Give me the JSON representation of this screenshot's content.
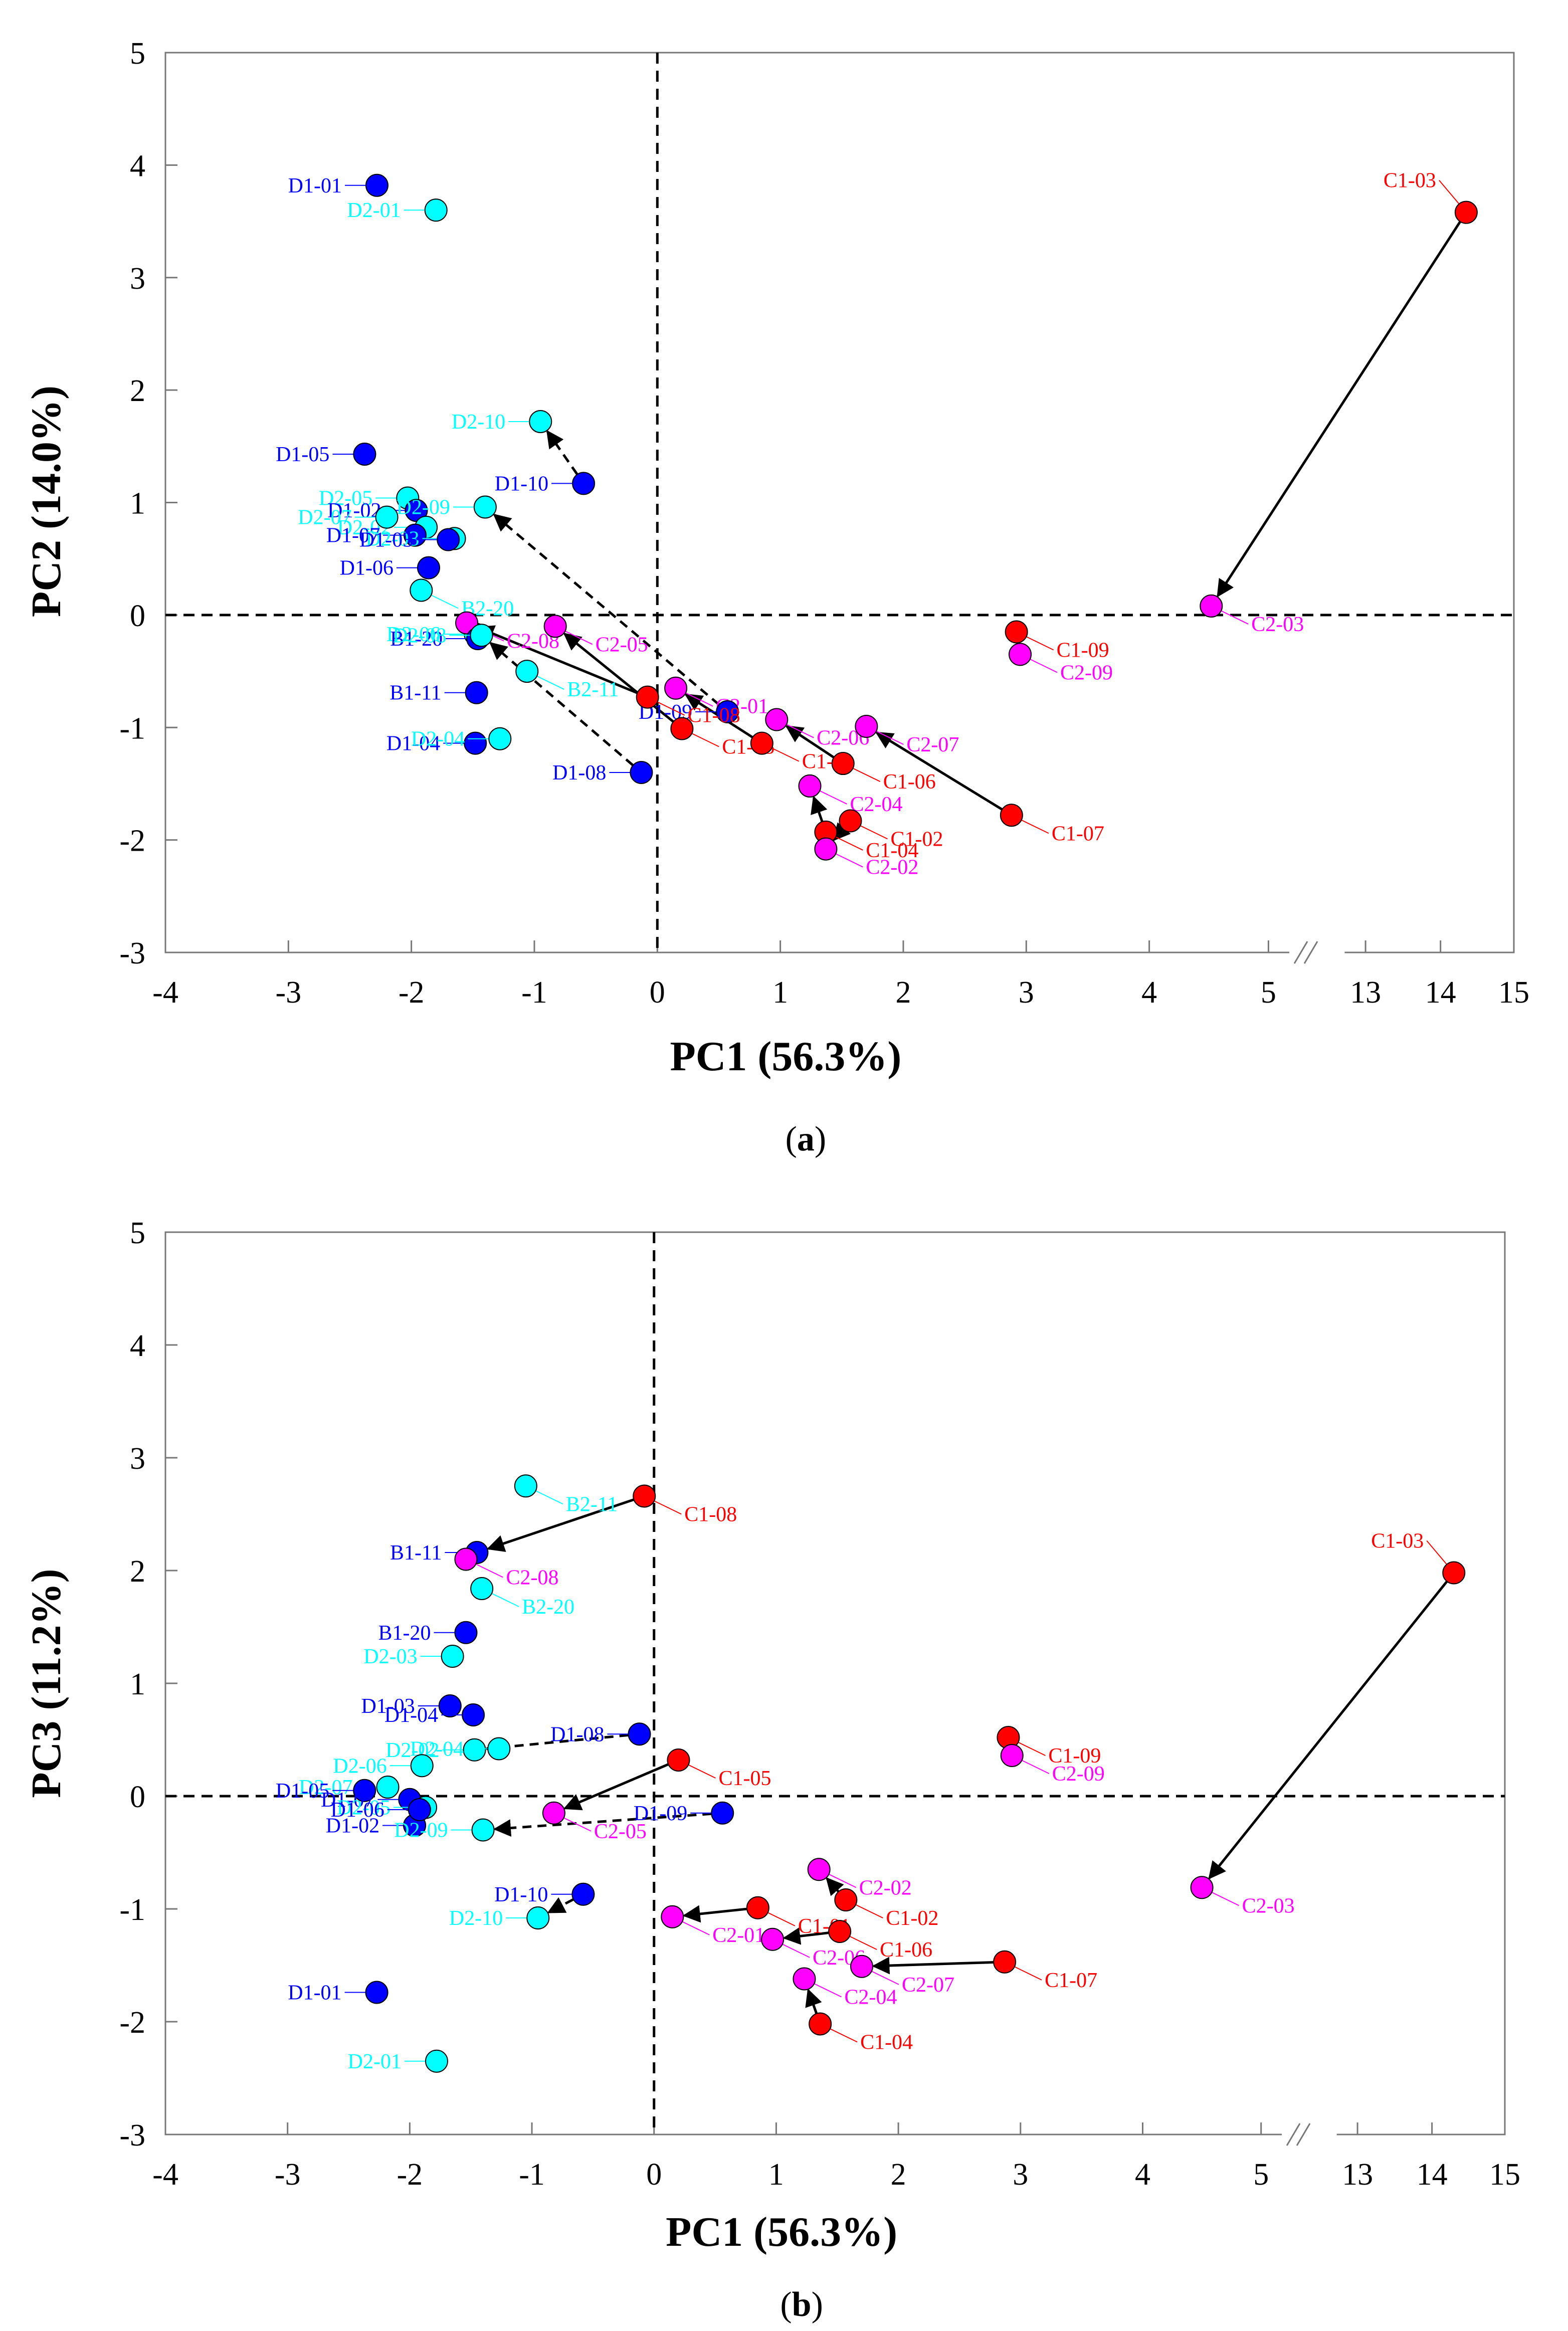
{
  "colors": {
    "C1": "#ff0000",
    "C2": "#ff00ff",
    "D1": "#0000ff",
    "D2": "#00ffff",
    "B1": "#0000ff",
    "B2": "#00ffff"
  },
  "chart_data": [
    {
      "type": "scatter",
      "caption_open": "(",
      "caption_letter": "a",
      "caption_close": ")",
      "xlabel": "PC1 (56.3%)",
      "ylabel": "PC2 (14.0%)",
      "xticks": [
        "-4",
        "-3",
        "-2",
        "-1",
        "0",
        "1",
        "2",
        "3",
        "4",
        "5",
        "13",
        "14",
        "15"
      ],
      "yticks": [
        "-3",
        "-2",
        "-1",
        "0",
        "1",
        "2",
        "3",
        "4",
        "5"
      ],
      "xlim": [
        -4,
        15
      ],
      "ylim": [
        -3,
        5
      ],
      "axis_break": {
        "from": 5,
        "to": 13
      },
      "reference_lines": {
        "x": 0,
        "y": 0,
        "style": "dashed"
      },
      "points": [
        {
          "label": "D1-01",
          "x": -2.28,
          "y": 3.82,
          "group": "D1"
        },
        {
          "label": "D2-01",
          "x": -1.8,
          "y": 3.6,
          "group": "D2"
        },
        {
          "label": "C1-03",
          "x": 14.35,
          "y": 3.58,
          "group": "C1"
        },
        {
          "label": "D2-10",
          "x": -0.95,
          "y": 1.72,
          "group": "D2"
        },
        {
          "label": "D1-05",
          "x": -2.38,
          "y": 1.43,
          "group": "D1"
        },
        {
          "label": "D1-10",
          "x": -0.6,
          "y": 1.17,
          "group": "D1"
        },
        {
          "label": "D2-05",
          "x": -2.03,
          "y": 1.04,
          "group": "D2"
        },
        {
          "label": "D1-02",
          "x": -1.96,
          "y": 0.93,
          "group": "D1"
        },
        {
          "label": "D2-02",
          "x": -1.88,
          "y": 0.78,
          "group": "D2"
        },
        {
          "label": "D2-09",
          "x": -1.4,
          "y": 0.96,
          "group": "D2"
        },
        {
          "label": "D2-07",
          "x": -2.2,
          "y": 0.87,
          "group": "D2"
        },
        {
          "label": "D1-07",
          "x": -1.97,
          "y": 0.71,
          "group": "D1"
        },
        {
          "label": "D2-03",
          "x": -1.65,
          "y": 0.68,
          "group": "D2"
        },
        {
          "label": "D1-03",
          "x": -1.7,
          "y": 0.67,
          "group": "D1"
        },
        {
          "label": "D1-06",
          "x": -1.86,
          "y": 0.42,
          "group": "D1"
        },
        {
          "label": "B2-20",
          "x": -1.92,
          "y": 0.22,
          "group": "B2"
        },
        {
          "label": "D2-06",
          "x": -1.48,
          "y": -0.17,
          "group": "D2"
        },
        {
          "label": "C2-08",
          "x": -1.55,
          "y": -0.07,
          "group": "C2"
        },
        {
          "label": "C2-05",
          "x": -0.83,
          "y": -0.1,
          "group": "C2"
        },
        {
          "label": "B1-20",
          "x": -1.46,
          "y": -0.21,
          "group": "B1"
        },
        {
          "label": "D2-08",
          "x": -1.43,
          "y": -0.18,
          "group": "D2"
        },
        {
          "label": "C2-01",
          "x": 0.15,
          "y": -0.65,
          "group": "C2"
        },
        {
          "label": "D1-09",
          "x": 0.57,
          "y": -0.86,
          "group": "D1"
        },
        {
          "label": "C1-09",
          "x": 2.92,
          "y": -0.15,
          "group": "C1"
        },
        {
          "label": "C2-09",
          "x": 2.95,
          "y": -0.35,
          "group": "C2"
        },
        {
          "label": "C2-03",
          "x": 4.52,
          "y": 0.08,
          "group": "C2"
        },
        {
          "label": "B1-11",
          "x": -1.47,
          "y": -0.69,
          "group": "B1"
        },
        {
          "label": "B2-11",
          "x": -1.06,
          "y": -0.5,
          "group": "B2"
        },
        {
          "label": "C1-08",
          "x": -0.08,
          "y": -0.73,
          "group": "C1"
        },
        {
          "label": "C1-05",
          "x": 0.2,
          "y": -1.01,
          "group": "C1"
        },
        {
          "label": "C2-06",
          "x": 0.97,
          "y": -0.93,
          "group": "C2"
        },
        {
          "label": "C2-07",
          "x": 1.7,
          "y": -0.99,
          "group": "C2"
        },
        {
          "label": "C1-01",
          "x": 0.85,
          "y": -1.14,
          "group": "C1"
        },
        {
          "label": "C1-06",
          "x": 1.51,
          "y": -1.32,
          "group": "C1"
        },
        {
          "label": "D1-04",
          "x": -1.48,
          "y": -1.14,
          "group": "D1"
        },
        {
          "label": "D2-04",
          "x": -1.28,
          "y": -1.1,
          "group": "D2"
        },
        {
          "label": "D1-08",
          "x": -0.13,
          "y": -1.4,
          "group": "D1"
        },
        {
          "label": "C2-04",
          "x": 1.24,
          "y": -1.52,
          "group": "C2"
        },
        {
          "label": "C1-07",
          "x": 2.88,
          "y": -1.78,
          "group": "C1"
        },
        {
          "label": "C1-04",
          "x": 1.37,
          "y": -1.93,
          "group": "C1"
        },
        {
          "label": "C1-02",
          "x": 1.57,
          "y": -1.83,
          "group": "C1"
        },
        {
          "label": "C2-02",
          "x": 1.37,
          "y": -2.08,
          "group": "C2"
        }
      ],
      "arrows": [
        {
          "from": "C1-03",
          "to": "C2-03",
          "style": "solid"
        },
        {
          "from": "C1-09",
          "to": "C2-09",
          "style": "solid"
        },
        {
          "from": "C1-07",
          "to": "C2-07",
          "style": "solid"
        },
        {
          "from": "C1-06",
          "to": "C2-06",
          "style": "solid"
        },
        {
          "from": "C1-01",
          "to": "C2-01",
          "style": "solid"
        },
        {
          "from": "C1-05",
          "to": "C2-05",
          "style": "solid"
        },
        {
          "from": "C1-08",
          "to": "C2-08",
          "style": "solid"
        },
        {
          "from": "C1-04",
          "to": "C2-04",
          "style": "solid"
        },
        {
          "from": "C1-02",
          "to": "C2-02",
          "style": "solid"
        },
        {
          "from": "D1-10",
          "to": "D2-10",
          "style": "dashed"
        },
        {
          "from": "D1-09",
          "to": "D2-09",
          "style": "dashed"
        },
        {
          "from": "D1-08",
          "to": "D2-08",
          "style": "dashed"
        }
      ]
    },
    {
      "type": "scatter",
      "caption_open": "(",
      "caption_letter": "b",
      "caption_close": ")",
      "xlabel": "PC1 (56.3%)",
      "ylabel": "PC3 (11.2%)",
      "xticks": [
        "-4",
        "-3",
        "-2",
        "-1",
        "0",
        "1",
        "2",
        "3",
        "4",
        "5",
        "13",
        "14",
        "15"
      ],
      "yticks": [
        "-3",
        "-2",
        "-1",
        "0",
        "1",
        "2",
        "3",
        "4",
        "5"
      ],
      "xlim": [
        -4,
        15
      ],
      "ylim": [
        -3,
        5
      ],
      "axis_break": {
        "from": 5,
        "to": 13
      },
      "reference_lines": {
        "x": 0,
        "y": 0,
        "style": "dashed"
      },
      "points": [
        {
          "label": "B2-11",
          "x": -1.05,
          "y": 2.75,
          "group": "B2"
        },
        {
          "label": "C1-08",
          "x": -0.08,
          "y": 2.66,
          "group": "C1"
        },
        {
          "label": "B1-11",
          "x": -1.45,
          "y": 2.16,
          "group": "B1"
        },
        {
          "label": "C2-08",
          "x": -1.54,
          "y": 2.1,
          "group": "C2"
        },
        {
          "label": "B2-20",
          "x": -1.41,
          "y": 1.84,
          "group": "B2"
        },
        {
          "label": "C1-03",
          "x": 14.3,
          "y": 1.98,
          "group": "C1"
        },
        {
          "label": "B1-20",
          "x": -1.54,
          "y": 1.45,
          "group": "B1"
        },
        {
          "label": "D2-03",
          "x": -1.65,
          "y": 1.24,
          "group": "D2"
        },
        {
          "label": "D1-03",
          "x": -1.67,
          "y": 0.8,
          "group": "D1"
        },
        {
          "label": "D1-04",
          "x": -1.48,
          "y": 0.72,
          "group": "D1"
        },
        {
          "label": "D1-08",
          "x": -0.12,
          "y": 0.55,
          "group": "D1"
        },
        {
          "label": "C1-09",
          "x": 2.9,
          "y": 0.52,
          "group": "C1"
        },
        {
          "label": "C2-09",
          "x": 2.93,
          "y": 0.36,
          "group": "C2"
        },
        {
          "label": "C1-05",
          "x": 0.2,
          "y": 0.32,
          "group": "C1"
        },
        {
          "label": "D2-02",
          "x": -1.47,
          "y": 0.41,
          "group": "D2"
        },
        {
          "label": "D2-04",
          "x": -1.27,
          "y": 0.42,
          "group": "D2"
        },
        {
          "label": "D2-06",
          "x": -1.9,
          "y": 0.27,
          "group": "D2"
        },
        {
          "label": "D2-07",
          "x": -2.18,
          "y": 0.08,
          "group": "D2"
        },
        {
          "label": "D1-05",
          "x": -2.37,
          "y": 0.05,
          "group": "D1"
        },
        {
          "label": "D1-07",
          "x": -2.0,
          "y": -0.03,
          "group": "D1"
        },
        {
          "label": "D2-05",
          "x": -1.87,
          "y": -0.1,
          "group": "D2"
        },
        {
          "label": "D1-02",
          "x": -1.96,
          "y": -0.26,
          "group": "D1"
        },
        {
          "label": "D1-06",
          "x": -1.92,
          "y": -0.12,
          "group": "D1"
        },
        {
          "label": "C2-05",
          "x": -0.82,
          "y": -0.15,
          "group": "C2"
        },
        {
          "label": "D1-09",
          "x": 0.56,
          "y": -0.15,
          "group": "D1"
        },
        {
          "label": "D2-09",
          "x": -1.4,
          "y": -0.3,
          "group": "D2"
        },
        {
          "label": "C2-02",
          "x": 1.35,
          "y": -0.65,
          "group": "C2"
        },
        {
          "label": "C1-02",
          "x": 1.57,
          "y": -0.92,
          "group": "C1"
        },
        {
          "label": "C2-03",
          "x": 4.5,
          "y": -0.81,
          "group": "C2"
        },
        {
          "label": "D1-10",
          "x": -0.58,
          "y": -0.87,
          "group": "D1"
        },
        {
          "label": "C1-01",
          "x": 0.85,
          "y": -0.99,
          "group": "C1"
        },
        {
          "label": "C2-01",
          "x": 0.15,
          "y": -1.07,
          "group": "C2"
        },
        {
          "label": "D2-10",
          "x": -0.95,
          "y": -1.08,
          "group": "D2"
        },
        {
          "label": "C1-06",
          "x": 1.52,
          "y": -1.2,
          "group": "C1"
        },
        {
          "label": "C2-06",
          "x": 0.97,
          "y": -1.27,
          "group": "C2"
        },
        {
          "label": "C1-07",
          "x": 2.87,
          "y": -1.47,
          "group": "C1"
        },
        {
          "label": "C2-07",
          "x": 1.7,
          "y": -1.51,
          "group": "C2"
        },
        {
          "label": "C2-04",
          "x": 1.23,
          "y": -1.62,
          "group": "C2"
        },
        {
          "label": "D1-01",
          "x": -2.27,
          "y": -1.74,
          "group": "D1"
        },
        {
          "label": "C1-04",
          "x": 1.36,
          "y": -2.02,
          "group": "C1"
        },
        {
          "label": "D2-01",
          "x": -1.78,
          "y": -2.35,
          "group": "D2"
        }
      ],
      "arrows": [
        {
          "from": "C1-03",
          "to": "C2-03",
          "style": "solid"
        },
        {
          "from": "C1-09",
          "to": "C2-09",
          "style": "solid"
        },
        {
          "from": "C1-07",
          "to": "C2-07",
          "style": "solid"
        },
        {
          "from": "C1-06",
          "to": "C2-06",
          "style": "solid"
        },
        {
          "from": "C1-01",
          "to": "C2-01",
          "style": "solid"
        },
        {
          "from": "C1-05",
          "to": "C2-05",
          "style": "solid"
        },
        {
          "from": "C1-08",
          "to": "B1-11",
          "style": "solid"
        },
        {
          "from": "C1-04",
          "to": "C2-04",
          "style": "solid"
        },
        {
          "from": "C1-02",
          "to": "C2-02",
          "style": "solid"
        },
        {
          "from": "D1-10",
          "to": "D2-10",
          "style": "dashed"
        },
        {
          "from": "D1-09",
          "to": "D2-09",
          "style": "dashed"
        },
        {
          "from": "D1-08",
          "to": "D2-02",
          "style": "dashed"
        }
      ]
    }
  ]
}
